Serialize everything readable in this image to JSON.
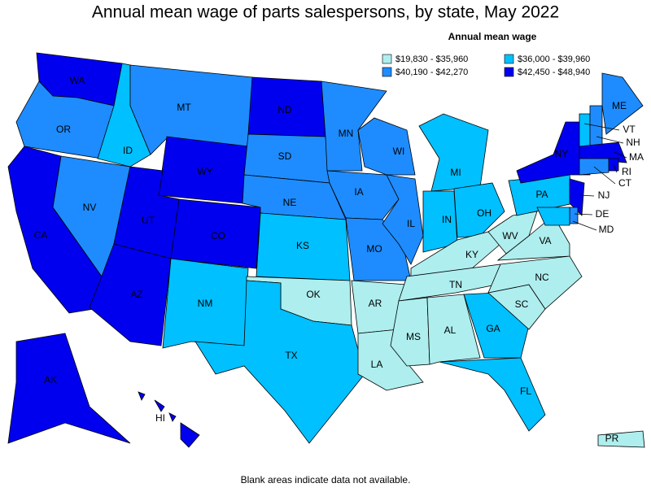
{
  "title": "Annual mean wage of parts salespersons, by state, May 2022",
  "legend": {
    "title": "Annual mean wage",
    "bins": [
      {
        "label": "$19,830 - $35,960",
        "color": "#aeeeee"
      },
      {
        "label": "$36,000 - $39,960",
        "color": "#00c0ff"
      },
      {
        "label": "$40,190 - $42,270",
        "color": "#1e8cff"
      },
      {
        "label": "$42,450 - $48,940",
        "color": "#0000ee"
      }
    ]
  },
  "states": [
    {
      "name": "WA",
      "bin": 3
    },
    {
      "name": "OR",
      "bin": 2
    },
    {
      "name": "CA",
      "bin": 3
    },
    {
      "name": "NV",
      "bin": 2
    },
    {
      "name": "ID",
      "bin": 1
    },
    {
      "name": "MT",
      "bin": 2
    },
    {
      "name": "WY",
      "bin": 3
    },
    {
      "name": "UT",
      "bin": 3
    },
    {
      "name": "CO",
      "bin": 3
    },
    {
      "name": "AZ",
      "bin": 3
    },
    {
      "name": "NM",
      "bin": 1
    },
    {
      "name": "ND",
      "bin": 3
    },
    {
      "name": "SD",
      "bin": 2
    },
    {
      "name": "NE",
      "bin": 2
    },
    {
      "name": "KS",
      "bin": 1
    },
    {
      "name": "OK",
      "bin": 0
    },
    {
      "name": "TX",
      "bin": 1
    },
    {
      "name": "MN",
      "bin": 2
    },
    {
      "name": "IA",
      "bin": 2
    },
    {
      "name": "MO",
      "bin": 2
    },
    {
      "name": "AR",
      "bin": 0
    },
    {
      "name": "LA",
      "bin": 0
    },
    {
      "name": "WI",
      "bin": 2
    },
    {
      "name": "IL",
      "bin": 2
    },
    {
      "name": "MI",
      "bin": 1
    },
    {
      "name": "IN",
      "bin": 1
    },
    {
      "name": "OH",
      "bin": 1
    },
    {
      "name": "KY",
      "bin": 0
    },
    {
      "name": "TN",
      "bin": 0
    },
    {
      "name": "MS",
      "bin": 0
    },
    {
      "name": "AL",
      "bin": 0
    },
    {
      "name": "GA",
      "bin": 1
    },
    {
      "name": "FL",
      "bin": 1
    },
    {
      "name": "SC",
      "bin": 0
    },
    {
      "name": "NC",
      "bin": 0
    },
    {
      "name": "VA",
      "bin": 0
    },
    {
      "name": "WV",
      "bin": 0
    },
    {
      "name": "PA",
      "bin": 1
    },
    {
      "name": "NY",
      "bin": 3
    },
    {
      "name": "VT",
      "bin": 1
    },
    {
      "name": "NH",
      "bin": 2
    },
    {
      "name": "ME",
      "bin": 2
    },
    {
      "name": "MA",
      "bin": 3
    },
    {
      "name": "RI",
      "bin": 3
    },
    {
      "name": "CT",
      "bin": 2
    },
    {
      "name": "NJ",
      "bin": 3
    },
    {
      "name": "DE",
      "bin": 2
    },
    {
      "name": "MD",
      "bin": 1
    },
    {
      "name": "AK",
      "bin": 3
    },
    {
      "name": "HI",
      "bin": 3
    },
    {
      "name": "PR",
      "bin": 0
    }
  ],
  "footnote": "Blank areas indicate data not available."
}
